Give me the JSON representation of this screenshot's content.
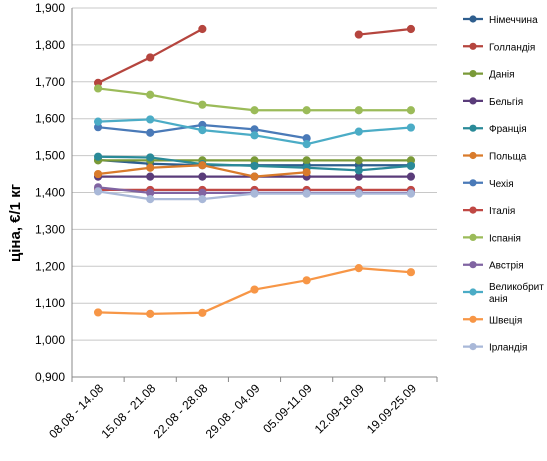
{
  "chart_data": {
    "type": "line",
    "title": "",
    "xlabel": "",
    "ylabel": "ціна, €/1 кг",
    "ylim": [
      0.9,
      1.9
    ],
    "y_ticks": [
      "0,900",
      "1,000",
      "1,100",
      "1,200",
      "1,300",
      "1,400",
      "1,500",
      "1,600",
      "1,700",
      "1,800",
      "1,900"
    ],
    "categories": [
      "08.08 - 14.08",
      "15.08 - 21.08",
      "22.08 - 28.08",
      "29.08 - 04.09",
      "05.09-11.09",
      "12.09-18.09",
      "19.09-25.09"
    ],
    "grid": true,
    "legend_position": "right",
    "series": [
      {
        "name": "Німеччина",
        "color": "#2e5e8e",
        "values": [
          1.488,
          1.478,
          1.474,
          1.474,
          1.474,
          1.474,
          1.474
        ]
      },
      {
        "name": "Голландія",
        "color": "#b5453e",
        "values": [
          1.697,
          1.766,
          1.843,
          null,
          null,
          1.828,
          1.843
        ]
      },
      {
        "name": "Данія",
        "color": "#7a9a38",
        "values": [
          1.487,
          1.487,
          1.487,
          1.487,
          1.487,
          1.487,
          1.487
        ]
      },
      {
        "name": "Бельгія",
        "color": "#5a3c7a",
        "values": [
          1.443,
          1.443,
          1.443,
          1.443,
          1.443,
          1.443,
          1.443
        ]
      },
      {
        "name": "Франція",
        "color": "#2a8a98",
        "values": [
          1.497,
          1.495,
          1.477,
          1.472,
          1.467,
          1.46,
          1.472
        ]
      },
      {
        "name": "Польща",
        "color": "#d97b2b",
        "values": [
          1.45,
          1.467,
          1.474,
          1.443,
          1.455,
          null,
          null
        ]
      },
      {
        "name": "Чехія",
        "color": "#4a7ab8",
        "values": [
          1.577,
          1.562,
          1.583,
          1.571,
          1.547,
          null,
          null
        ]
      },
      {
        "name": "Італія",
        "color": "#c04844",
        "values": [
          1.407,
          1.407,
          1.407,
          1.407,
          1.407,
          1.407,
          1.407
        ]
      },
      {
        "name": "Іспанія",
        "color": "#9bbb59",
        "values": [
          1.682,
          1.665,
          1.638,
          1.623,
          1.623,
          1.623,
          1.623
        ]
      },
      {
        "name": "Австрія",
        "color": "#8064a2",
        "values": [
          1.414,
          1.399,
          1.399,
          1.399,
          1.399,
          1.399,
          1.399
        ]
      },
      {
        "name": "Великобританія",
        "color": "#4bacc6",
        "values": [
          1.592,
          1.598,
          1.569,
          1.555,
          1.531,
          1.565,
          1.576
        ]
      },
      {
        "name": "Швеція",
        "color": "#f79646",
        "values": [
          1.075,
          1.071,
          1.074,
          1.137,
          1.162,
          1.195,
          1.184
        ]
      },
      {
        "name": "Ірландія",
        "color": "#a9b8d8",
        "values": [
          1.403,
          1.382,
          1.382,
          1.397,
          1.397,
          1.397,
          1.397
        ]
      }
    ]
  },
  "legend_labels": {
    "Великобританія": [
      "Великобрит",
      "анія"
    ]
  }
}
